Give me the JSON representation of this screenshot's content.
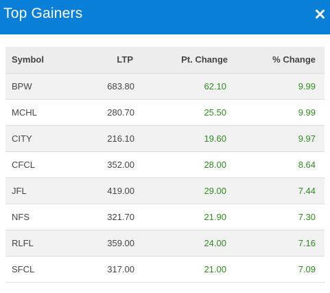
{
  "header": {
    "title": "Top Gainers",
    "background_color": "#0a7fd8",
    "close_icon": "close-icon"
  },
  "table": {
    "columns": [
      "Symbol",
      "LTP",
      "Pt. Change",
      "% Change"
    ],
    "positive_color": "#2e8b1f",
    "rows": [
      {
        "symbol": "BPW",
        "ltp": "683.80",
        "pt_change": "62.10",
        "pct_change": "9.99"
      },
      {
        "symbol": "MCHL",
        "ltp": "280.70",
        "pt_change": "25.50",
        "pct_change": "9.99"
      },
      {
        "symbol": "CITY",
        "ltp": "216.10",
        "pt_change": "19.60",
        "pct_change": "9.97"
      },
      {
        "symbol": "CFCL",
        "ltp": "352.00",
        "pt_change": "28.00",
        "pct_change": "8.64"
      },
      {
        "symbol": "JFL",
        "ltp": "419.00",
        "pt_change": "29.00",
        "pct_change": "7.44"
      },
      {
        "symbol": "NFS",
        "ltp": "321.70",
        "pt_change": "21.90",
        "pct_change": "7.30"
      },
      {
        "symbol": "RLFL",
        "ltp": "359.00",
        "pt_change": "24.00",
        "pct_change": "7.16"
      },
      {
        "symbol": "SFCL",
        "ltp": "317.00",
        "pt_change": "21.00",
        "pct_change": "7.09"
      }
    ]
  }
}
